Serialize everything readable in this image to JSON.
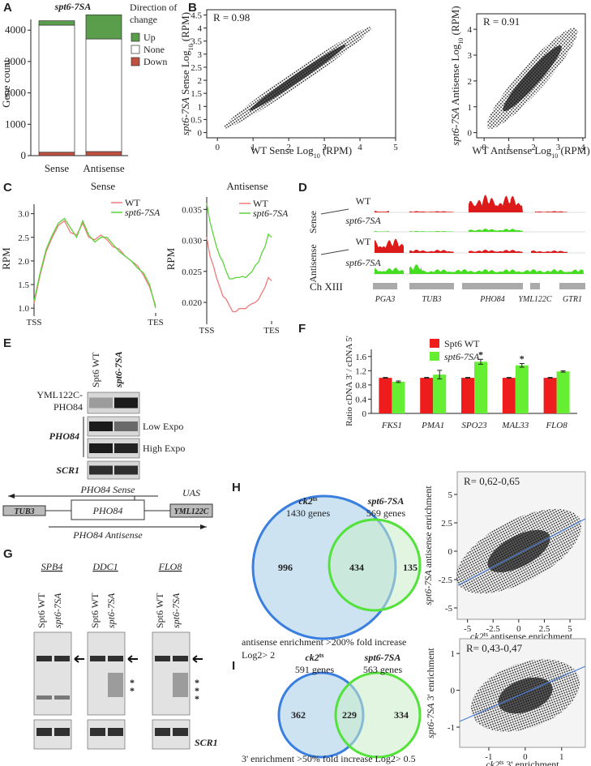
{
  "A": {
    "label": "A",
    "title": "spt6-7SA",
    "ylabel": "Gene count",
    "legend_title": "Direction of change",
    "categories": [
      "Sense",
      "Antisense"
    ],
    "ylim": [
      0,
      4600
    ],
    "yticks": [
      0,
      1000,
      2000,
      3000,
      4000
    ],
    "series": [
      {
        "name": "Down",
        "color": "#c0503f",
        "values": [
          110,
          130
        ]
      },
      {
        "name": "None",
        "color": "#ffffff",
        "values": [
          4050,
          3590
        ]
      },
      {
        "name": "Up",
        "color": "#5a9e4b",
        "values": [
          140,
          770
        ]
      }
    ]
  },
  "B": {
    "label": "B",
    "plots": [
      {
        "r": "R = 0.98",
        "xlabel": [
          "WT Sense Log",
          "10",
          " (RPM)"
        ],
        "ylabel": [
          "spt6-7SA",
          " Sense Log",
          "10",
          " (RPM)"
        ],
        "xlim": [
          -0.3,
          5
        ],
        "ylim": [
          -0.2,
          4.7
        ],
        "xticks": [
          0,
          1,
          2,
          3,
          4,
          5
        ],
        "yticks": [
          0,
          0.5,
          1,
          1.5,
          2,
          2.5,
          3,
          3.5,
          4,
          4.5
        ]
      },
      {
        "r": "R = 0.91",
        "xlabel": [
          "WT Antisense Log",
          "10",
          " (RPM)"
        ],
        "ylabel": [
          "spt6-7SA",
          " Antisense Log",
          "10",
          " (RPM)"
        ],
        "xlim": [
          -0.3,
          4.1
        ],
        "ylim": [
          -0.2,
          4.6
        ],
        "xticks": [
          0,
          1,
          2,
          3,
          4
        ],
        "yticks": [
          0,
          1,
          2,
          3,
          4
        ]
      }
    ]
  },
  "C": {
    "label": "C",
    "plots": [
      {
        "title": "Sense",
        "ylabel": "RPM",
        "x": [
          0,
          0.05,
          0.1,
          0.15,
          0.2,
          0.25,
          0.3,
          0.35,
          0.4,
          0.45,
          0.5,
          0.55,
          0.6,
          0.65,
          0.7,
          0.75,
          0.8,
          0.85,
          0.9,
          0.95,
          1
        ],
        "xlim": [
          0,
          1
        ],
        "xticks": [
          {
            "value": 0,
            "label": "TSS"
          },
          {
            "value": 1,
            "label": "TES"
          }
        ],
        "ylim": [
          0.9,
          3.2
        ],
        "yticks": [
          {
            "value": 1,
            "label": "1.0"
          },
          1.5,
          {
            "value": 2,
            "label": "2.0"
          },
          2.5,
          {
            "value": 3,
            "label": "3.0"
          }
        ],
        "series": [
          {
            "name": "WT",
            "color": "#f07a7a",
            "values": [
              1.1,
              1.7,
              2.2,
              2.5,
              2.75,
              2.85,
              2.6,
              2.55,
              2.8,
              2.5,
              2.45,
              2.55,
              2.45,
              2.3,
              2.25,
              2.1,
              2.0,
              1.9,
              1.7,
              1.45,
              1.05
            ]
          },
          {
            "name": "spt6-7SA",
            "color": "#5cd33a",
            "values": [
              1.15,
              1.75,
              2.25,
              2.55,
              2.8,
              2.9,
              2.7,
              2.5,
              2.85,
              2.55,
              2.4,
              2.5,
              2.5,
              2.35,
              2.2,
              2.1,
              2.0,
              1.85,
              1.75,
              1.5,
              1.0
            ]
          }
        ]
      },
      {
        "title": "Antisense",
        "ylabel": "RPM",
        "x": [
          0,
          0.05,
          0.1,
          0.15,
          0.2,
          0.25,
          0.3,
          0.35,
          0.4,
          0.45,
          0.5,
          0.55,
          0.6,
          0.65,
          0.7,
          0.75,
          0.8,
          0.85,
          0.9,
          0.95,
          1
        ],
        "xlim": [
          0,
          1
        ],
        "xticks": [
          {
            "value": 0,
            "label": "TSS"
          },
          {
            "value": 1,
            "label": "TES"
          }
        ],
        "ylim": [
          0.017,
          0.037
        ],
        "yticks": [
          {
            "value": 0.02,
            "label": "0.020"
          },
          0.025,
          {
            "value": 0.03,
            "label": "0.030"
          },
          0.035
        ],
        "series": [
          {
            "name": "WT",
            "color": "#f07a7a",
            "values": [
              0.0305,
              0.0275,
              0.026,
              0.024,
              0.0225,
              0.021,
              0.0205,
              0.0195,
              0.0185,
              0.0185,
              0.019,
              0.019,
              0.019,
              0.0195,
              0.0198,
              0.02,
              0.0205,
              0.0215,
              0.0225,
              0.024,
              0.0235
            ]
          },
          {
            "name": "spt6-7SA",
            "color": "#5cd33a",
            "values": [
              0.036,
              0.033,
              0.031,
              0.029,
              0.0275,
              0.0265,
              0.025,
              0.0238,
              0.0238,
              0.024,
              0.024,
              0.0242,
              0.024,
              0.0245,
              0.025,
              0.026,
              0.0265,
              0.028,
              0.029,
              0.031,
              0.0305
            ]
          }
        ]
      }
    ]
  },
  "D": {
    "label": "D",
    "groups": [
      "Sense",
      "Antisense"
    ],
    "rows": [
      "WT",
      "spt6-7SA",
      "WT",
      "spt6-7SA"
    ],
    "chromosome": "Ch XIII",
    "genes": [
      "PGA3",
      "TUB3",
      "PHO84",
      "YML122C",
      "GTR1"
    ]
  },
  "E": {
    "label": "E",
    "columns": [
      "Spt6 WT",
      "spt6-7SA"
    ],
    "rows": [
      "YML122C-PHO84",
      "PHO84",
      "SCR1"
    ],
    "exposures": [
      "Low Expo",
      "High Expo"
    ],
    "diagram": {
      "sense": "PHO84 Sense",
      "uas": "UAS",
      "left_gene": "TUB3",
      "gene": "PHO84",
      "right_gene": "YML122C",
      "antisense": "PHO84 Antisense"
    }
  },
  "F": {
    "label": "F",
    "ylabel": "Ratio cDNA 3' / cDNA 5'",
    "categories": [
      "FKS1",
      "PMA1",
      "SPO23",
      "MAL33",
      "FLO8"
    ],
    "ylim": [
      0,
      1.8
    ],
    "yticks": [
      0,
      0.4,
      0.8,
      1.2,
      1.6
    ],
    "series": [
      {
        "name": "Spt6 WT",
        "color": "#ee1c1c",
        "values": [
          1,
          1,
          1,
          1,
          1
        ],
        "errors": [
          0.01,
          0.01,
          0.01,
          0.01,
          0.01
        ]
      },
      {
        "name": "spt6-7SA",
        "color": "#66ee33",
        "values": [
          0.89,
          1.09,
          1.45,
          1.35,
          1.18
        ],
        "errors": [
          0.02,
          0.12,
          0.07,
          0.05,
          0.02
        ]
      }
    ],
    "significance": [
      null,
      null,
      "*",
      "*",
      null
    ]
  },
  "G": {
    "label": "G",
    "columns": [
      "Spt6 WT",
      "spt6-7SA"
    ],
    "panels": [
      {
        "gene": "SPB4",
        "stars": []
      },
      {
        "gene": "DDC1",
        "stars": [
          "*",
          "*"
        ]
      },
      {
        "gene": "FLO8",
        "stars": [
          "*",
          "*",
          "*"
        ]
      }
    ],
    "loading": "SCR1"
  },
  "H": {
    "label": "H",
    "left": [
      "ck2",
      "ts"
    ],
    "left_count": "1430 genes",
    "right": "spt6-7SA",
    "right_count": "569 genes",
    "left_only": "996",
    "overlap": "434",
    "right_only": "135",
    "note": "antisense enrichment >200% fold increase",
    "note2": "Log2> 2",
    "scatter": {
      "r": "R= 0,62-0,65",
      "xlabel": [
        "ck2",
        "ts",
        " antisense enrichment"
      ],
      "ylabel": [
        "spt6-7SA",
        "  antisense enrichment"
      ],
      "xlim": [
        -6,
        6.5
      ],
      "ylim": [
        -6,
        7
      ],
      "xticks": [
        -5,
        -2.5,
        0,
        2.5,
        5
      ],
      "yticks": [
        -5,
        -2.5,
        0,
        2.5,
        5
      ]
    }
  },
  "I": {
    "label": "I",
    "left": [
      "ck2",
      "ts"
    ],
    "left_count": "591 genes",
    "right": "spt6-7SA",
    "right_count": "563 genes",
    "left_only": "362",
    "overlap": "229",
    "right_only": "334",
    "note": "3' enrichment >50% fold increase Log2> 0.5",
    "scatter": {
      "r": "R= 0,43-0,47",
      "xlabel": [
        "ck2",
        "ts",
        " 3' enrichment"
      ],
      "ylabel": [
        "spt6-7SA",
        " 3' enrichment"
      ],
      "xlim": [
        -1.8,
        1.65
      ],
      "ylim": [
        -1.55,
        1.4
      ],
      "xticks": [
        -1,
        0,
        1
      ],
      "yticks": [
        -1,
        0,
        1
      ]
    }
  }
}
